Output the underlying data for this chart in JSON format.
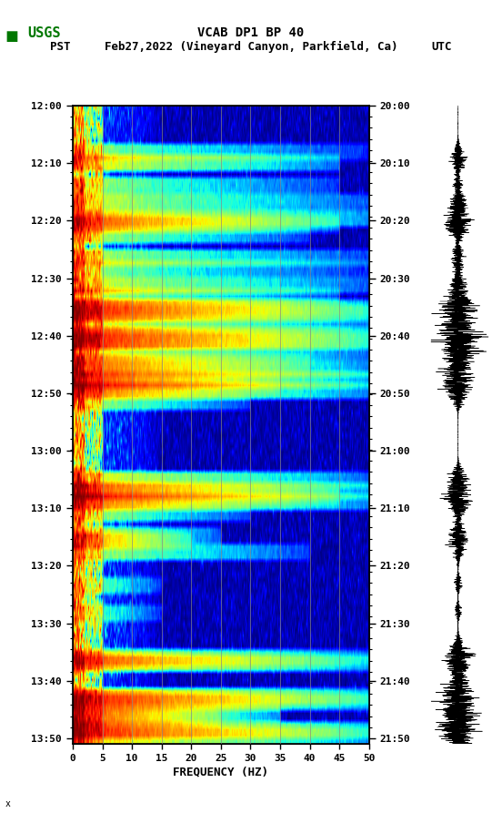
{
  "title_line1": "VCAB DP1 BP 40",
  "title_line2_left": "PST",
  "title_line2_mid": "Feb27,2022 (Vineyard Canyon, Parkfield, Ca)",
  "title_line2_right": "UTC",
  "xlabel": "FREQUENCY (HZ)",
  "freq_min": 0,
  "freq_max": 50,
  "yticks_pst": [
    "12:00",
    "12:10",
    "12:20",
    "12:30",
    "12:40",
    "12:50",
    "13:00",
    "13:10",
    "13:20",
    "13:30",
    "13:40",
    "13:50"
  ],
  "yticks_utc": [
    "20:00",
    "20:10",
    "20:20",
    "20:30",
    "20:40",
    "20:50",
    "21:00",
    "21:10",
    "21:20",
    "21:30",
    "21:40",
    "21:50"
  ],
  "xticks": [
    0,
    5,
    10,
    15,
    20,
    25,
    30,
    35,
    40,
    45,
    50
  ],
  "vgrid_freqs": [
    5,
    10,
    15,
    20,
    25,
    30,
    35,
    40,
    45
  ],
  "background_color": "#ffffff",
  "spectrogram_cmap": "jet",
  "logo_color": "#007700"
}
